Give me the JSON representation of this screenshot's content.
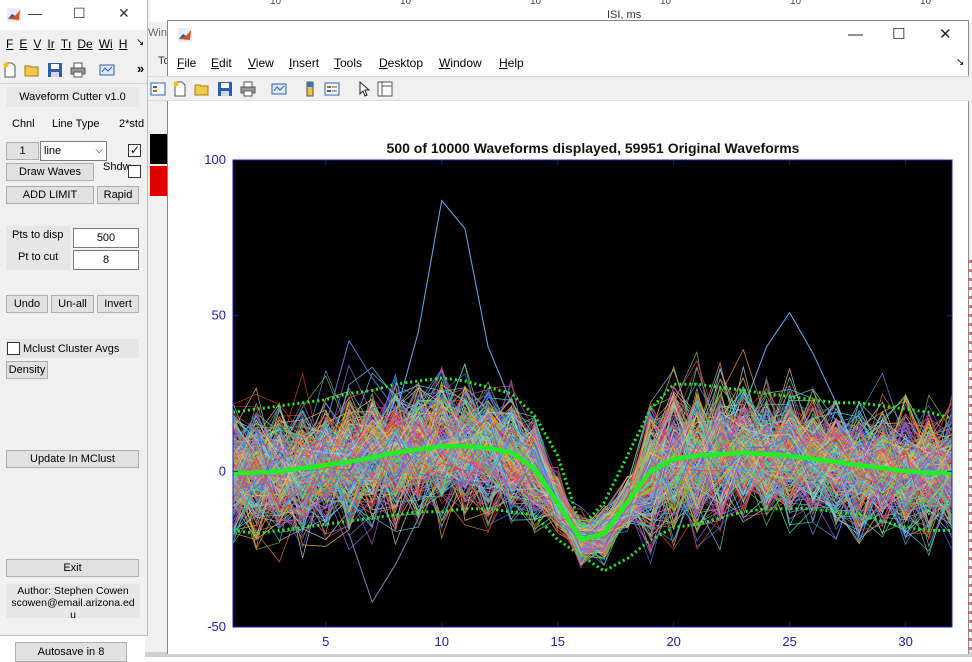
{
  "background": {
    "axis_ticks": [
      "10",
      "10",
      "10",
      "10",
      "10",
      "10"
    ],
    "axis_label": "ISI, ms",
    "sidebar_label": "Win",
    "sidebar_label2": "To"
  },
  "left_window": {
    "title_controls": {
      "minimize": "—",
      "maximize": "☐",
      "close": "✕"
    },
    "menus": [
      "F",
      "E",
      "V",
      "Ir",
      "Tı",
      "De",
      "Wi",
      "H"
    ],
    "menu_overflow": "↘",
    "toolbar_overflow": "»",
    "title": "Waveform Cutter v1.0",
    "headers": {
      "channel": "Chnl",
      "line_type": "Line Type",
      "std": "2*std"
    },
    "channel_button": "1",
    "line_type_value": "line",
    "std_checked": true,
    "draw_waves": "Draw Waves",
    "shdw_label": "Shdw",
    "shdw_checked": false,
    "add_limit": "ADD LIMIT",
    "rapid": "Rapid",
    "pts_to_disp_label": "Pts to disp",
    "pts_to_disp_value": "500",
    "pt_to_cut_label": "Pt to cut",
    "pt_to_cut_value": "8",
    "undo": "Undo",
    "unall": "Un-all",
    "invert": "Invert",
    "mclust_label": "Mclust Cluster Avgs",
    "mclust_checked": false,
    "density": "Density",
    "update": "Update In MClust",
    "exit": "Exit",
    "author_line1": "Author: Stephen Cowen",
    "author_line2": "scowen@email.arizona.ed",
    "author_line3": "u",
    "autosave": "Autosave in 8"
  },
  "figure_window": {
    "title_controls": {
      "minimize": "—",
      "maximize": "☐",
      "close": "✕"
    },
    "menus": [
      "File",
      "Edit",
      "View",
      "Insert",
      "Tools",
      "Desktop",
      "Window",
      "Help"
    ],
    "menu_underline": [
      "F",
      "E",
      "V",
      "I",
      "T",
      "D",
      "W",
      "H"
    ],
    "menu_overflow": "↘"
  },
  "chart_data": {
    "type": "line",
    "title": "500 of 10000 Waveforms displayed, 59951 Original Waveforms",
    "xlabel": "",
    "ylabel": "",
    "xlim": [
      1,
      32
    ],
    "ylim": [
      -50,
      100
    ],
    "x_ticks": [
      5,
      10,
      15,
      20,
      25,
      30
    ],
    "y_ticks": [
      -50,
      0,
      50,
      100
    ],
    "background": "#000000",
    "axis_color": "#1c1cba",
    "n_waveforms": 500,
    "mean": {
      "color": "#22ee22",
      "x": [
        1,
        2,
        3,
        4,
        5,
        6,
        7,
        8,
        9,
        10,
        11,
        12,
        13,
        14,
        15,
        16,
        17,
        18,
        19,
        20,
        21,
        22,
        23,
        24,
        25,
        26,
        27,
        28,
        29,
        30,
        31,
        32
      ],
      "values": [
        -0.5,
        -0.5,
        0,
        1,
        2,
        3,
        4.5,
        6,
        7,
        8,
        8,
        7.5,
        6,
        1,
        -10,
        -22,
        -20,
        -10,
        0,
        4,
        5,
        5.5,
        6,
        5.5,
        5,
        4,
        3,
        2,
        1,
        0,
        -0.5,
        -0.5
      ]
    },
    "upper_bound": {
      "color": "#22ee22",
      "x": [
        1,
        2,
        3,
        4,
        5,
        6,
        7,
        8,
        9,
        10,
        11,
        12,
        13,
        14,
        15,
        16,
        17,
        18,
        19,
        20,
        21,
        22,
        23,
        24,
        25,
        26,
        27,
        28,
        29,
        30,
        31,
        32
      ],
      "values": [
        19,
        20,
        21,
        22,
        23,
        25,
        26,
        28,
        29,
        30,
        29,
        27,
        25,
        18,
        5,
        -18,
        -10,
        5,
        20,
        28,
        28,
        27,
        26,
        25,
        24,
        23,
        22,
        22,
        21,
        20,
        19,
        17
      ]
    },
    "lower_bound": {
      "color": "#22ee22",
      "x": [
        1,
        2,
        3,
        4,
        5,
        6,
        7,
        8,
        9,
        10,
        11,
        12,
        13,
        14,
        15,
        16,
        17,
        18,
        19,
        20,
        21,
        22,
        23,
        24,
        25,
        26,
        27,
        28,
        29,
        30,
        31,
        32
      ],
      "values": [
        -19,
        -20,
        -19,
        -18,
        -17,
        -16,
        -15,
        -14,
        -13,
        -13,
        -12,
        -12,
        -13,
        -14,
        -22,
        -27,
        -32,
        -28,
        -22,
        -18,
        -17,
        -15,
        -13,
        -12,
        -12,
        -12,
        -13,
        -14,
        -16,
        -18,
        -19,
        -19
      ]
    }
  }
}
